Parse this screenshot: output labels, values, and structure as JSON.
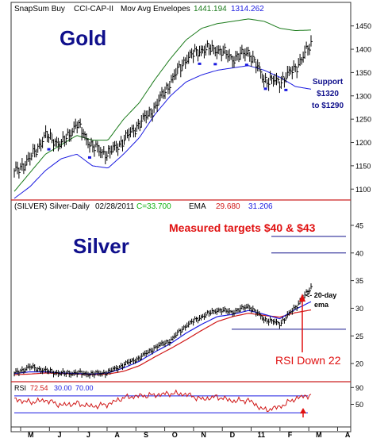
{
  "header": {
    "source": "SnapSum Buy",
    "indicator": "CCI-CAP-II",
    "overlay": "Mov Avg Envelopes",
    "env_upper": "1441.194",
    "env_lower": "1314.262"
  },
  "gold_panel": {
    "title": "Gold",
    "support_line1": "Support",
    "support_line2": "$1320",
    "support_line3": "to $1290"
  },
  "silver_panel": {
    "info_symbol": "(SILVER) Silver-Daily",
    "info_date": "02/28/2011",
    "info_close": "C=33.700",
    "info_ema_label": "EMA",
    "info_ema1": "29.680",
    "info_ema2": "31.206",
    "title": "Silver",
    "targets_note": "Measured targets $40 & $43",
    "ema_note_line1": "<- 20-day",
    "ema_note_line2": "ema",
    "rsi_note": "RSI Down 22"
  },
  "rsi_panel": {
    "label": "RSI",
    "value": "72.54",
    "lower": "30.00",
    "upper": "70.00"
  },
  "colors": {
    "gold_title": "#10108c",
    "env_upper": "#1a7a1a",
    "env_lower": "#1a1ae0",
    "ema_fast": "#1a1ae0",
    "ema_slow": "#d01818",
    "annotation_red": "#e01010",
    "annotation_blue": "#10108c",
    "close_green": "#10b010",
    "rsi_line": "#d01818",
    "rsi_bands": "#1a1ae0",
    "frame_red": "#cc2222"
  },
  "chart_data": [
    {
      "type": "line",
      "title": "Gold",
      "series": [
        {
          "name": "Mov Avg Envelopes",
          "x": [
            "M",
            "M",
            "J",
            "J",
            "J",
            "A",
            "A",
            "S",
            "S",
            "O",
            "O",
            "N",
            "N",
            "D",
            "D",
            "11",
            "11",
            "F",
            "F",
            "M"
          ],
          "values": [
            1095,
            1135,
            1175,
            1195,
            1215,
            1205,
            1205,
            1250,
            1285,
            1335,
            1380,
            1420,
            1445,
            1455,
            1460,
            1465,
            1460,
            1445,
            1440,
            1441.2
          ]
        },
        {
          "name": "Mov Avg Envelopes",
          "x": [
            "M",
            "M",
            "J",
            "J",
            "J",
            "A",
            "A",
            "S",
            "S",
            "O",
            "O",
            "N",
            "N",
            "D",
            "D",
            "11",
            "11",
            "F",
            "F",
            "M"
          ],
          "values": [
            1080,
            1105,
            1140,
            1165,
            1175,
            1150,
            1145,
            1175,
            1210,
            1260,
            1300,
            1330,
            1345,
            1355,
            1360,
            1365,
            1355,
            1340,
            1320,
            1314.3
          ]
        },
        {
          "name": "Price",
          "x": [
            "M",
            "M",
            "J",
            "J",
            "J",
            "A",
            "A",
            "S",
            "S",
            "O",
            "O",
            "N",
            "N",
            "D",
            "D",
            "11",
            "11",
            "F",
            "F",
            "M"
          ],
          "values": [
            1135,
            1165,
            1215,
            1195,
            1240,
            1190,
            1175,
            1205,
            1240,
            1275,
            1330,
            1380,
            1400,
            1400,
            1380,
            1395,
            1335,
            1330,
            1360,
            1410
          ]
        }
      ],
      "yticks": [
        1100,
        1150,
        1200,
        1250,
        1300,
        1350,
        1400,
        1450
      ],
      "ylim": [
        1080,
        1475
      ]
    },
    {
      "type": "line",
      "title": "Silver",
      "series": [
        {
          "name": "Price",
          "x": [
            "M",
            "M",
            "J",
            "J",
            "J",
            "A",
            "A",
            "S",
            "S",
            "O",
            "O",
            "N",
            "N",
            "D",
            "D",
            "11",
            "11",
            "F",
            "F",
            "M"
          ],
          "values": [
            18.2,
            19.4,
            18.7,
            18.2,
            18.3,
            18.1,
            18.4,
            19.8,
            21.0,
            22.9,
            24.2,
            26.9,
            28.5,
            29.7,
            29.3,
            30.4,
            28.0,
            27.2,
            30.2,
            33.7
          ]
        },
        {
          "name": "EMA",
          "x": [
            "M",
            "M",
            "J",
            "J",
            "J",
            "A",
            "A",
            "S",
            "S",
            "O",
            "O",
            "N",
            "N",
            "D",
            "D",
            "11",
            "11",
            "F",
            "F",
            "M"
          ],
          "values": [
            18.0,
            18.1,
            18.3,
            18.2,
            18.1,
            18.0,
            18.1,
            18.6,
            19.6,
            21.2,
            22.7,
            24.3,
            26.0,
            27.6,
            28.5,
            29.1,
            28.7,
            28.4,
            29.2,
            29.7
          ]
        },
        {
          "name": "EMA",
          "x": [
            "M",
            "M",
            "J",
            "J",
            "J",
            "A",
            "A",
            "S",
            "S",
            "O",
            "O",
            "N",
            "N",
            "D",
            "D",
            "11",
            "11",
            "F",
            "F",
            "M"
          ],
          "values": [
            18.2,
            18.5,
            18.5,
            18.3,
            18.2,
            18.1,
            18.3,
            19.2,
            20.4,
            22.1,
            23.6,
            25.5,
            27.1,
            28.5,
            28.9,
            29.6,
            28.9,
            28.1,
            29.8,
            31.2
          ]
        }
      ],
      "yticks": [
        20,
        25,
        30,
        35,
        40,
        45
      ],
      "ylim": [
        17,
        47
      ]
    },
    {
      "type": "line",
      "title": "RSI",
      "series": [
        {
          "name": "RSI",
          "x": [
            "M",
            "M",
            "J",
            "J",
            "J",
            "A",
            "A",
            "S",
            "S",
            "O",
            "O",
            "N",
            "N",
            "D",
            "D",
            "11",
            "11",
            "F",
            "F",
            "M"
          ],
          "values": [
            62,
            55,
            60,
            48,
            52,
            45,
            50,
            66,
            70,
            72,
            76,
            74,
            62,
            68,
            58,
            60,
            36,
            44,
            64,
            72.54
          ]
        }
      ],
      "bands": [
        30,
        70
      ],
      "yticks": [
        50,
        90
      ],
      "ylim": [
        0,
        100
      ]
    }
  ],
  "x_axis": [
    "M",
    "J",
    "J",
    "A",
    "S",
    "O",
    "N",
    "D",
    "11",
    "F",
    "M",
    "A"
  ]
}
